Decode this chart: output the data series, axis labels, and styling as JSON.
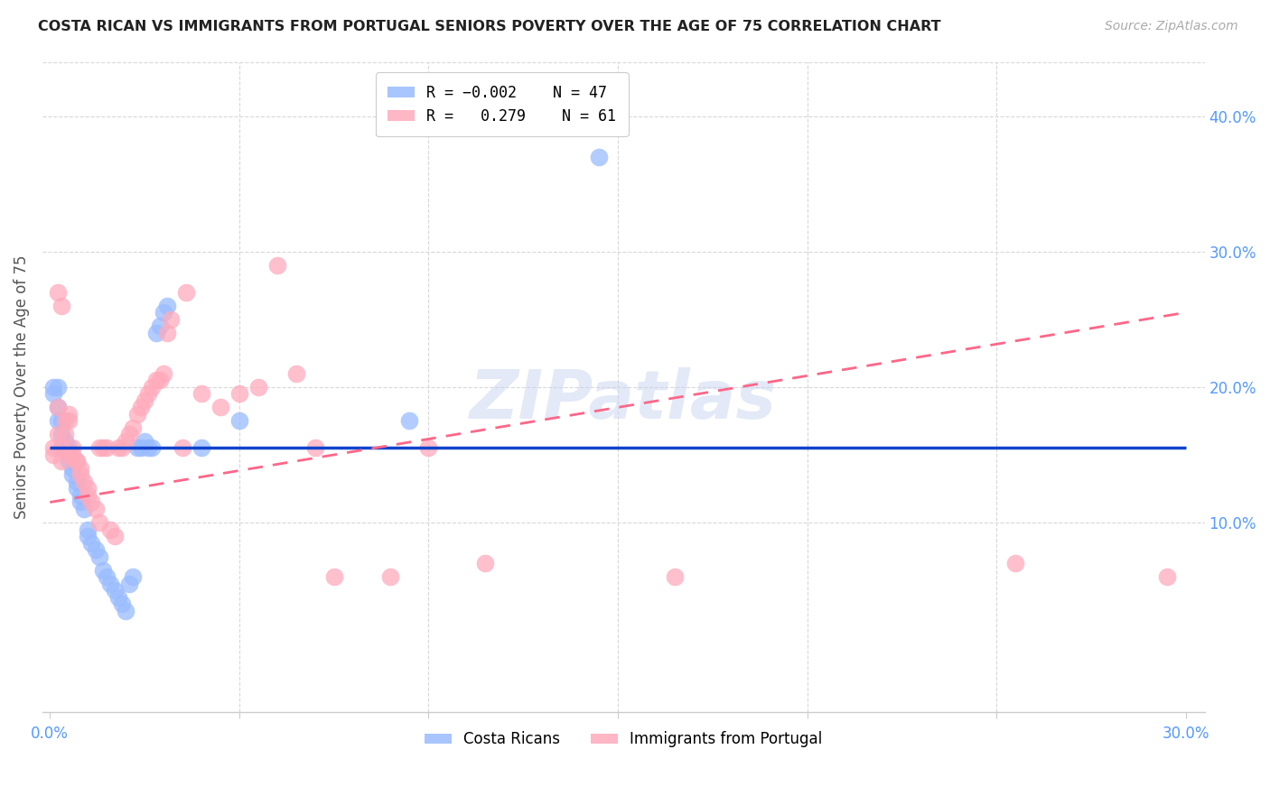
{
  "title": "COSTA RICAN VS IMMIGRANTS FROM PORTUGAL SENIORS POVERTY OVER THE AGE OF 75 CORRELATION CHART",
  "source": "Source: ZipAtlas.com",
  "xlabel_ticks": [
    "0.0%",
    "",
    "",
    "",
    "",
    "",
    "",
    "",
    "",
    "",
    "",
    "",
    "30.0%"
  ],
  "xlabel_vals": [
    0.0,
    0.3
  ],
  "ylabel_ticks_right": [
    "40.0%",
    "30.0%",
    "20.0%",
    "10.0%"
  ],
  "ylabel_vals_right": [
    0.4,
    0.3,
    0.2,
    0.1
  ],
  "xlim": [
    -0.002,
    0.305
  ],
  "ylim": [
    -0.04,
    0.44
  ],
  "ylabel": "Seniors Poverty Over the Age of 75",
  "color_blue": "#99bbff",
  "color_pink": "#ffaabb",
  "color_line_blue": "#1144cc",
  "color_line_pink": "#ff6688",
  "color_axis_right": "#5599ff",
  "color_axis_bottom": "#5599ff",
  "title_color": "#222222",
  "source_color": "#aaaaaa",
  "watermark": "ZIPatlas",
  "blue_regression": [
    0.0,
    0.155,
    0.3,
    0.155
  ],
  "pink_regression": [
    0.0,
    0.115,
    0.3,
    0.255
  ],
  "blue_scatter": [
    [
      0.001,
      0.2
    ],
    [
      0.001,
      0.195
    ],
    [
      0.002,
      0.2
    ],
    [
      0.002,
      0.185
    ],
    [
      0.002,
      0.175
    ],
    [
      0.003,
      0.165
    ],
    [
      0.003,
      0.175
    ],
    [
      0.003,
      0.155
    ],
    [
      0.004,
      0.16
    ],
    [
      0.004,
      0.155
    ],
    [
      0.005,
      0.155
    ],
    [
      0.005,
      0.15
    ],
    [
      0.005,
      0.145
    ],
    [
      0.006,
      0.14
    ],
    [
      0.006,
      0.135
    ],
    [
      0.007,
      0.13
    ],
    [
      0.007,
      0.125
    ],
    [
      0.008,
      0.12
    ],
    [
      0.008,
      0.115
    ],
    [
      0.009,
      0.11
    ],
    [
      0.01,
      0.095
    ],
    [
      0.01,
      0.09
    ],
    [
      0.011,
      0.085
    ],
    [
      0.012,
      0.08
    ],
    [
      0.013,
      0.075
    ],
    [
      0.014,
      0.065
    ],
    [
      0.015,
      0.06
    ],
    [
      0.016,
      0.055
    ],
    [
      0.017,
      0.05
    ],
    [
      0.018,
      0.045
    ],
    [
      0.019,
      0.04
    ],
    [
      0.02,
      0.035
    ],
    [
      0.021,
      0.055
    ],
    [
      0.022,
      0.06
    ],
    [
      0.023,
      0.155
    ],
    [
      0.024,
      0.155
    ],
    [
      0.025,
      0.16
    ],
    [
      0.026,
      0.155
    ],
    [
      0.027,
      0.155
    ],
    [
      0.028,
      0.24
    ],
    [
      0.029,
      0.245
    ],
    [
      0.03,
      0.255
    ],
    [
      0.031,
      0.26
    ],
    [
      0.04,
      0.155
    ],
    [
      0.05,
      0.175
    ],
    [
      0.095,
      0.175
    ],
    [
      0.145,
      0.37
    ]
  ],
  "pink_scatter": [
    [
      0.001,
      0.155
    ],
    [
      0.001,
      0.15
    ],
    [
      0.002,
      0.165
    ],
    [
      0.002,
      0.185
    ],
    [
      0.002,
      0.27
    ],
    [
      0.003,
      0.26
    ],
    [
      0.003,
      0.155
    ],
    [
      0.003,
      0.145
    ],
    [
      0.004,
      0.175
    ],
    [
      0.004,
      0.165
    ],
    [
      0.005,
      0.18
    ],
    [
      0.005,
      0.175
    ],
    [
      0.005,
      0.15
    ],
    [
      0.006,
      0.155
    ],
    [
      0.006,
      0.15
    ],
    [
      0.007,
      0.145
    ],
    [
      0.007,
      0.145
    ],
    [
      0.008,
      0.14
    ],
    [
      0.008,
      0.135
    ],
    [
      0.009,
      0.13
    ],
    [
      0.01,
      0.125
    ],
    [
      0.01,
      0.12
    ],
    [
      0.011,
      0.115
    ],
    [
      0.012,
      0.11
    ],
    [
      0.013,
      0.155
    ],
    [
      0.013,
      0.1
    ],
    [
      0.014,
      0.155
    ],
    [
      0.015,
      0.155
    ],
    [
      0.016,
      0.095
    ],
    [
      0.017,
      0.09
    ],
    [
      0.018,
      0.155
    ],
    [
      0.019,
      0.155
    ],
    [
      0.02,
      0.16
    ],
    [
      0.021,
      0.165
    ],
    [
      0.022,
      0.17
    ],
    [
      0.023,
      0.18
    ],
    [
      0.024,
      0.185
    ],
    [
      0.025,
      0.19
    ],
    [
      0.026,
      0.195
    ],
    [
      0.027,
      0.2
    ],
    [
      0.028,
      0.205
    ],
    [
      0.029,
      0.205
    ],
    [
      0.03,
      0.21
    ],
    [
      0.031,
      0.24
    ],
    [
      0.032,
      0.25
    ],
    [
      0.035,
      0.155
    ],
    [
      0.036,
      0.27
    ],
    [
      0.04,
      0.195
    ],
    [
      0.045,
      0.185
    ],
    [
      0.05,
      0.195
    ],
    [
      0.055,
      0.2
    ],
    [
      0.06,
      0.29
    ],
    [
      0.065,
      0.21
    ],
    [
      0.07,
      0.155
    ],
    [
      0.075,
      0.06
    ],
    [
      0.09,
      0.06
    ],
    [
      0.1,
      0.155
    ],
    [
      0.115,
      0.07
    ],
    [
      0.165,
      0.06
    ],
    [
      0.255,
      0.07
    ],
    [
      0.295,
      0.06
    ]
  ]
}
